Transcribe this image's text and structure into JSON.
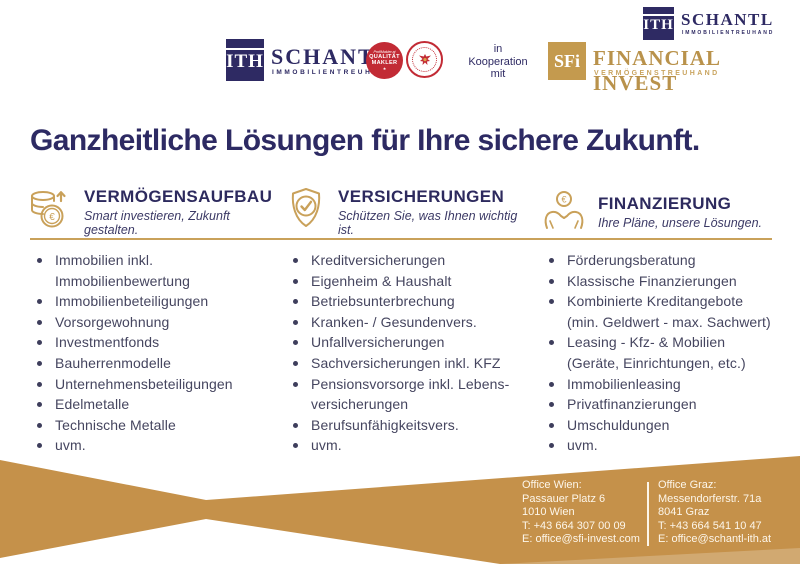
{
  "colors": {
    "gold": "#c5914a",
    "gold_light": "#c9a15a",
    "navy": "#2d2a63",
    "body_text": "#45455f",
    "seal_red": "#c22b35"
  },
  "header": {
    "schantl_logo": {
      "monogram": "ITH",
      "name": "SCHANTL",
      "subtitle": "IMMOBILIENTREUHAND"
    },
    "quality_seal": {
      "top": "ProfiMakler.at",
      "line1": "QUALITÄT",
      "line2": "MAKLER",
      "star": "★"
    },
    "austria_seal_icon": "austria-eagle-seal-icon",
    "cooperation_text": "in\nKooperation\nmit",
    "sfi_logo": {
      "monogram": "SFi",
      "name": "FINANCIAL INVEST",
      "subtitle": "VERMÖGENSTREUHAND"
    },
    "corner_logo": {
      "monogram": "ITH",
      "name": "SCHANTL",
      "subtitle": "IMMOBILIENTREUHAND"
    }
  },
  "headline": "Ganzheitliche Lösungen für Ihre sichere Zukunft.",
  "columns": [
    {
      "icon": "coins-euro-growth-icon",
      "title": "VERMÖGENSAUFBAU",
      "subtitle": "Smart investieren, Zukunft gestalten.",
      "items": [
        [
          "Immobilien inkl.",
          "Immobilienbewertung"
        ],
        [
          "Immobilienbeteiligungen"
        ],
        [
          "Vorsorgewohnung"
        ],
        [
          "Investmentfonds"
        ],
        [
          "Bauherrenmodelle"
        ],
        [
          "Unternehmensbeteiligungen"
        ],
        [
          "Edelmetalle"
        ],
        [
          "Technische Metalle"
        ],
        [
          "uvm."
        ]
      ]
    },
    {
      "icon": "shield-check-icon",
      "title": "VERSICHERUNGEN",
      "subtitle": "Schützen Sie, was Ihnen wichtig ist.",
      "items": [
        [
          "Kreditversicherungen"
        ],
        [
          "Eigenheim & Haushalt"
        ],
        [
          "Betriebsunterbrechung"
        ],
        [
          "Kranken- / Gesundenvers."
        ],
        [
          "Unfallversicherungen"
        ],
        [
          "Sachversicherungen inkl. KFZ"
        ],
        [
          "Pensionsvorsorge inkl. Lebens-",
          "versicherungen"
        ],
        [
          "Berufsunfähigkeitsvers."
        ],
        [
          "uvm."
        ]
      ]
    },
    {
      "icon": "hands-coin-icon",
      "title": "FINANZIERUNG",
      "subtitle": "Ihre Pläne, unsere Lösungen.",
      "items": [
        [
          "Förderungsberatung"
        ],
        [
          "Klassische Finanzierungen"
        ],
        [
          "Kombinierte Kreditangebote",
          "(min. Geldwert - max. Sachwert)"
        ],
        [
          "Leasing - Kfz- & Mobilien",
          "(Geräte, Einrichtungen, etc.)"
        ],
        [
          "Immobilienleasing"
        ],
        [
          "Privatfinanzierungen"
        ],
        [
          "Umschuldungen"
        ],
        [
          "uvm."
        ]
      ]
    }
  ],
  "footer": {
    "offices": [
      {
        "title": "Office Wien:",
        "address1": "Passauer Platz 6",
        "address2": "1010 Wien",
        "phone": "T: +43 664 307 00 09",
        "email": "E: office@sfi-invest.com"
      },
      {
        "title": "Office Graz:",
        "address1": "Messendorferstr. 71a",
        "address2": "8041 Graz",
        "phone": "T: +43 664 541 10 47",
        "email": "E: office@schantl-ith.at"
      }
    ]
  }
}
